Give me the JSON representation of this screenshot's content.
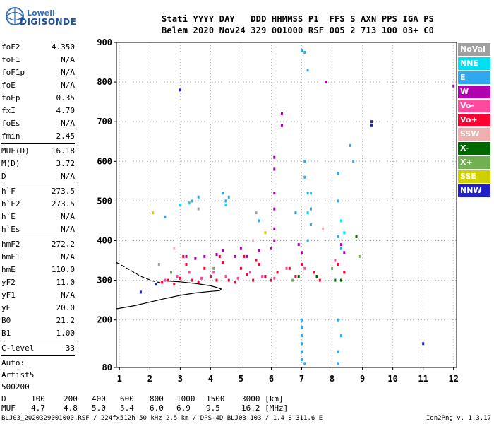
{
  "brand": {
    "line1": "Lowell",
    "line2": "DIGISONDE"
  },
  "header": {
    "line1": "Stati YYYY DAY   DDD HHMMSS P1  FFS S AXN PPS IGA PS",
    "line2": "Belem 2020 Nov24 329 001000 RSF 005 2 713 100 03+ C0"
  },
  "params": [
    {
      "label": "foF2",
      "value": "4.350"
    },
    {
      "label": "foF1",
      "value": "N/A"
    },
    {
      "label": "foF1p",
      "value": "N/A"
    },
    {
      "label": "foE",
      "value": "N/A"
    },
    {
      "label": "foEp",
      "value": "0.35"
    },
    {
      "label": "fxI",
      "value": "4.70"
    },
    {
      "label": "foEs",
      "value": "N/A"
    },
    {
      "label": "fmin",
      "value": "2.45"
    },
    {
      "sep": true
    },
    {
      "label": "MUF(D)",
      "value": "16.18"
    },
    {
      "label": "M(D)",
      "value": "3.72"
    },
    {
      "label": "D",
      "value": "N/A"
    },
    {
      "sep": true
    },
    {
      "label": "h`F",
      "value": "273.5"
    },
    {
      "label": "h`F2",
      "value": "273.5"
    },
    {
      "label": "h`E",
      "value": "N/A"
    },
    {
      "label": "h`Es",
      "value": "N/A"
    },
    {
      "sep": true
    },
    {
      "label": "hmF2",
      "value": "272.2"
    },
    {
      "label": "hmF1",
      "value": "N/A"
    },
    {
      "label": "hmE",
      "value": "110.0"
    },
    {
      "label": "yF2",
      "value": "11.0"
    },
    {
      "label": "yF1",
      "value": "N/A"
    },
    {
      "label": "yE",
      "value": "20.0"
    },
    {
      "label": "B0",
      "value": "21.2"
    },
    {
      "label": "B1",
      "value": "1.00"
    },
    {
      "sep": true
    },
    {
      "label": "C-level",
      "value": "33"
    },
    {
      "sep": true
    },
    {
      "free": "Auto:"
    },
    {
      "free": "Artist5"
    },
    {
      "free": "500200"
    }
  ],
  "legend": [
    {
      "name": "NoVal",
      "color": "#a0a0a0"
    },
    {
      "name": "NNE",
      "color": "#00e0f0"
    },
    {
      "name": "E",
      "color": "#30a8f0"
    },
    {
      "name": "W",
      "color": "#b000b0"
    },
    {
      "name": "Vo-",
      "color": "#ff4aa0"
    },
    {
      "name": "Vo+",
      "color": "#ff0030"
    },
    {
      "name": "SSW",
      "color": "#f0b0b0"
    },
    {
      "name": "X-",
      "color": "#006800"
    },
    {
      "name": "X+",
      "color": "#70b050"
    },
    {
      "name": "SSE",
      "color": "#d0d000"
    },
    {
      "name": "NNW",
      "color": "#2020c8"
    }
  ],
  "footer": {
    "d_label": "D",
    "d_values": [
      "100",
      "200",
      "400",
      "600",
      "800",
      "1000",
      "1500",
      "3000 [km]"
    ],
    "muf_label": "MUF",
    "muf_values": [
      "4.7",
      "4.8",
      "5.0",
      "5.4",
      "6.0",
      "6.9",
      "9.5",
      "16.2 [MHz]"
    ],
    "file_line": "BLJ03_2020329001000.RSF / 224fx512h 50 kHz 2.5 km / DPS-4D BLJ03 103 / 1.4 S 311.6 E",
    "version": "Ion2Png v. 1.3.17"
  },
  "chart_data": {
    "type": "scatter",
    "title": "",
    "xlabel": "",
    "ylabel": "",
    "xlim": [
      0.9,
      12.1
    ],
    "ylim": [
      80,
      900
    ],
    "xticks": [
      1,
      2,
      3,
      4,
      5,
      6,
      7,
      8,
      9,
      10,
      11,
      12
    ],
    "yticks": [
      80,
      200,
      300,
      400,
      500,
      600,
      700,
      800,
      900
    ],
    "grid": true,
    "legend_position": "right",
    "series": [
      {
        "name": "Vo+",
        "color": "#ff0030",
        "points": [
          [
            2.4,
            295
          ],
          [
            2.6,
            300
          ],
          [
            2.8,
            290
          ],
          [
            3.0,
            305
          ],
          [
            3.2,
            340
          ],
          [
            3.4,
            300
          ],
          [
            3.6,
            295
          ],
          [
            3.8,
            330
          ],
          [
            4.0,
            310
          ],
          [
            4.2,
            300
          ],
          [
            4.4,
            345
          ],
          [
            4.6,
            300
          ],
          [
            4.8,
            295
          ],
          [
            5.0,
            330
          ],
          [
            5.2,
            315
          ],
          [
            5.4,
            300
          ],
          [
            5.6,
            340
          ],
          [
            5.8,
            310
          ],
          [
            6.0,
            300
          ],
          [
            6.2,
            320
          ],
          [
            6.6,
            330
          ],
          [
            6.8,
            310
          ],
          [
            7.0,
            340
          ],
          [
            7.4,
            320
          ],
          [
            7.6,
            300
          ],
          [
            8.2,
            340
          ],
          [
            8.4,
            320
          ],
          [
            3.1,
            360
          ],
          [
            4.3,
            360
          ],
          [
            5.1,
            360
          ],
          [
            5.5,
            350
          ]
        ]
      },
      {
        "name": "Vo-",
        "color": "#ff4aa0",
        "points": [
          [
            2.5,
            300
          ],
          [
            2.9,
            310
          ],
          [
            3.3,
            320
          ],
          [
            3.7,
            305
          ],
          [
            4.1,
            320
          ],
          [
            4.5,
            310
          ],
          [
            4.9,
            305
          ],
          [
            5.3,
            320
          ],
          [
            5.7,
            310
          ],
          [
            6.1,
            305
          ],
          [
            6.5,
            330
          ],
          [
            7.1,
            330
          ],
          [
            8.1,
            350
          ]
        ]
      },
      {
        "name": "W",
        "color": "#b000b0",
        "points": [
          [
            3.2,
            360
          ],
          [
            3.5,
            355
          ],
          [
            3.8,
            360
          ],
          [
            4.2,
            365
          ],
          [
            4.4,
            375
          ],
          [
            4.8,
            360
          ],
          [
            5.0,
            380
          ],
          [
            5.2,
            360
          ],
          [
            5.6,
            375
          ],
          [
            6.0,
            380
          ],
          [
            6.1,
            610
          ],
          [
            6.1,
            580
          ],
          [
            6.1,
            520
          ],
          [
            6.1,
            480
          ],
          [
            6.1,
            430
          ],
          [
            6.1,
            400
          ],
          [
            6.35,
            720
          ],
          [
            6.35,
            690
          ],
          [
            6.9,
            390
          ],
          [
            7.0,
            370
          ],
          [
            8.3,
            390
          ],
          [
            8.4,
            370
          ],
          [
            7.8,
            800
          ],
          [
            12.0,
            790
          ]
        ]
      },
      {
        "name": "E",
        "color": "#30a8f0",
        "points": [
          [
            3.4,
            500
          ],
          [
            3.6,
            510
          ],
          [
            4.4,
            520
          ],
          [
            4.5,
            500
          ],
          [
            4.6,
            510
          ],
          [
            5.6,
            450
          ],
          [
            6.8,
            470
          ],
          [
            7.1,
            560
          ],
          [
            7.2,
            520
          ],
          [
            7.3,
            480
          ],
          [
            7.3,
            440
          ],
          [
            7.2,
            400
          ],
          [
            7.1,
            600
          ],
          [
            7.0,
            880
          ],
          [
            7.1,
            875
          ],
          [
            7.2,
            830
          ],
          [
            8.2,
            570
          ],
          [
            8.2,
            500
          ],
          [
            8.2,
            410
          ],
          [
            8.3,
            380
          ],
          [
            8.6,
            640
          ],
          [
            8.7,
            600
          ],
          [
            7.0,
            200
          ],
          [
            7.0,
            180
          ],
          [
            7.0,
            160
          ],
          [
            7.0,
            140
          ],
          [
            7.0,
            120
          ],
          [
            7.0,
            100
          ],
          [
            7.1,
            90
          ],
          [
            8.2,
            200
          ],
          [
            8.3,
            160
          ],
          [
            8.2,
            120
          ],
          [
            8.2,
            90
          ],
          [
            2.5,
            460
          ]
        ]
      },
      {
        "name": "NNE",
        "color": "#00e0f0",
        "points": [
          [
            3.0,
            490
          ],
          [
            3.3,
            495
          ],
          [
            4.5,
            490
          ],
          [
            7.3,
            520
          ],
          [
            7.2,
            470
          ],
          [
            8.3,
            450
          ],
          [
            8.4,
            420
          ]
        ]
      },
      {
        "name": "X-",
        "color": "#006800",
        "points": [
          [
            6.9,
            310
          ],
          [
            7.5,
            310
          ],
          [
            8.1,
            300
          ],
          [
            8.3,
            300
          ],
          [
            8.8,
            410
          ]
        ]
      },
      {
        "name": "X+",
        "color": "#70b050",
        "points": [
          [
            2.7,
            320
          ],
          [
            4.1,
            330
          ],
          [
            6.7,
            300
          ],
          [
            8.0,
            330
          ],
          [
            8.9,
            360
          ]
        ]
      },
      {
        "name": "SSW",
        "color": "#f0b0b0",
        "points": [
          [
            2.8,
            380
          ],
          [
            5.4,
            400
          ],
          [
            7.7,
            430
          ]
        ]
      },
      {
        "name": "SSE",
        "color": "#d0d000",
        "points": [
          [
            2.1,
            470
          ],
          [
            5.8,
            420
          ]
        ]
      },
      {
        "name": "NNW",
        "color": "#2020c8",
        "points": [
          [
            2.2,
            290
          ],
          [
            3.0,
            780
          ],
          [
            9.3,
            700
          ],
          [
            9.3,
            690
          ],
          [
            11.0,
            140
          ],
          [
            1.7,
            270
          ]
        ]
      },
      {
        "name": "NoVal",
        "color": "#a0a0a0",
        "points": [
          [
            3.6,
            480
          ],
          [
            2.3,
            340
          ],
          [
            5.5,
            470
          ]
        ]
      }
    ],
    "lines": [
      {
        "style": "solid",
        "points": [
          [
            0.9,
            228
          ],
          [
            1.5,
            236
          ],
          [
            2.0,
            245
          ],
          [
            2.5,
            254
          ],
          [
            3.0,
            262
          ],
          [
            3.5,
            268
          ],
          [
            4.0,
            272
          ],
          [
            4.3,
            274
          ],
          [
            4.35,
            278
          ],
          [
            4.2,
            282
          ],
          [
            4.0,
            286
          ],
          [
            3.5,
            292
          ],
          [
            3.0,
            296
          ],
          [
            2.6,
            298
          ],
          [
            2.45,
            300
          ]
        ]
      },
      {
        "style": "dashed",
        "points": [
          [
            0.9,
            345
          ],
          [
            1.3,
            328
          ],
          [
            1.7,
            310
          ],
          [
            2.1,
            298
          ],
          [
            2.4,
            293
          ]
        ]
      }
    ]
  }
}
